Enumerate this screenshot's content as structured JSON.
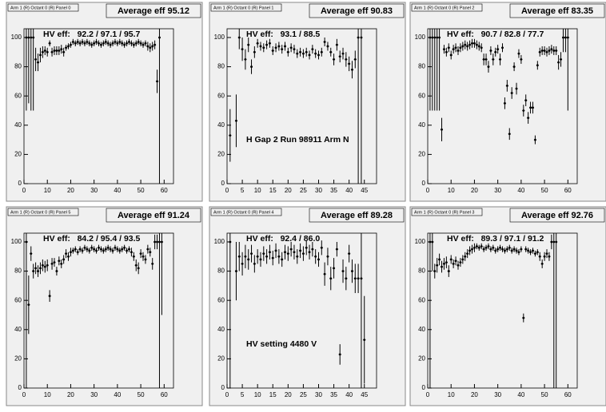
{
  "chart_data": [
    {
      "type": "scatter",
      "title": "Arm 1 (R) Octant 0 (R) Panel 0",
      "subtitle": "Average eff 95.12",
      "annotations": [
        "HV eff:   92.2 / 97.1 / 95.7"
      ],
      "x": [
        1,
        2,
        3,
        4,
        5,
        6,
        7,
        8,
        9,
        10,
        11,
        12,
        13,
        14,
        15,
        16,
        17,
        18,
        19,
        20,
        21,
        22,
        23,
        24,
        25,
        26,
        27,
        28,
        29,
        30,
        31,
        32,
        33,
        34,
        35,
        36,
        37,
        38,
        39,
        40,
        41,
        42,
        43,
        44,
        45,
        46,
        47,
        48,
        49,
        50,
        51,
        52,
        53,
        54,
        55,
        56,
        57,
        58
      ],
      "values": [
        100,
        100,
        100,
        100,
        85,
        83,
        88,
        90,
        91,
        90,
        96,
        90,
        91,
        91,
        91,
        92,
        90,
        93,
        94,
        95,
        97,
        96,
        97,
        96,
        97,
        96,
        97,
        96,
        95,
        96,
        97,
        96,
        95,
        96,
        97,
        96,
        95,
        96,
        97,
        96,
        97,
        96,
        95,
        96,
        97,
        96,
        95,
        96,
        97,
        96,
        95,
        96,
        94,
        93,
        94,
        95,
        70,
        100
      ],
      "errors": [
        50,
        45,
        50,
        50,
        8,
        6,
        5,
        4,
        3,
        3,
        2,
        3,
        3,
        3,
        3,
        3,
        3,
        2,
        2,
        2,
        2,
        2,
        2,
        2,
        2,
        2,
        2,
        2,
        2,
        2,
        2,
        2,
        2,
        2,
        2,
        2,
        2,
        2,
        2,
        2,
        2,
        2,
        2,
        2,
        2,
        2,
        2,
        2,
        2,
        2,
        2,
        2,
        3,
        3,
        3,
        3,
        8,
        100
      ],
      "xlim": [
        0,
        64
      ],
      "ylim": [
        0,
        106
      ],
      "xticks": [
        0,
        10,
        20,
        30,
        40,
        50,
        60
      ],
      "yticks": [
        0,
        20,
        40,
        60,
        80,
        100
      ],
      "color": "#000000"
    },
    {
      "type": "scatter",
      "title": "Arm 1 (R) Octant 0 (R) Panel 1",
      "subtitle": "Average eff 90.83",
      "annotations": [
        "HV eff:   93.1 / 88.5",
        "H Gap 2 Run 98911 Arm N"
      ],
      "x": [
        1,
        3,
        4,
        5,
        6,
        7,
        8,
        9,
        10,
        11,
        12,
        13,
        14,
        15,
        16,
        17,
        18,
        19,
        20,
        21,
        22,
        23,
        24,
        25,
        26,
        27,
        28,
        29,
        30,
        31,
        32,
        33,
        34,
        35,
        36,
        37,
        38,
        39,
        40,
        41,
        42,
        43,
        44
      ],
      "values": [
        33,
        43,
        100,
        92,
        85,
        95,
        80,
        90,
        96,
        94,
        93,
        95,
        96,
        91,
        93,
        94,
        92,
        94,
        90,
        93,
        92,
        89,
        90,
        89,
        90,
        88,
        92,
        89,
        88,
        90,
        97,
        94,
        90,
        85,
        95,
        87,
        89,
        85,
        82,
        78,
        85,
        100,
        100
      ],
      "errors": [
        18,
        18,
        8,
        8,
        7,
        5,
        5,
        4,
        3,
        3,
        3,
        3,
        3,
        3,
        3,
        3,
        3,
        3,
        3,
        3,
        3,
        3,
        3,
        3,
        3,
        3,
        3,
        3,
        3,
        3,
        3,
        3,
        3,
        4,
        4,
        4,
        4,
        5,
        5,
        6,
        6,
        100,
        100
      ],
      "xlim": [
        0,
        49
      ],
      "ylim": [
        0,
        106
      ],
      "xticks": [
        0,
        5,
        10,
        15,
        20,
        25,
        30,
        35,
        40,
        45
      ],
      "yticks": [
        0,
        20,
        40,
        60,
        80,
        100
      ],
      "color": "#000000"
    },
    {
      "type": "scatter",
      "title": "Arm 1 (R) Octant 0 (R) Panel 2",
      "subtitle": "Average eff 83.35",
      "annotations": [
        "HV eff:   90.7 / 82.8 / 77.7"
      ],
      "x": [
        1,
        2,
        3,
        4,
        5,
        6,
        7,
        8,
        9,
        10,
        11,
        12,
        13,
        14,
        15,
        16,
        17,
        18,
        19,
        20,
        21,
        22,
        23,
        24,
        25,
        26,
        27,
        28,
        29,
        30,
        31,
        32,
        33,
        34,
        35,
        36,
        37,
        38,
        39,
        40,
        41,
        42,
        43,
        44,
        45,
        46,
        47,
        48,
        49,
        50,
        51,
        52,
        53,
        54,
        55,
        56,
        57,
        58,
        59,
        60
      ],
      "values": [
        100,
        100,
        100,
        100,
        100,
        37,
        92,
        90,
        93,
        88,
        92,
        93,
        91,
        93,
        94,
        95,
        94,
        95,
        96,
        96,
        95,
        94,
        93,
        85,
        85,
        80,
        91,
        85,
        90,
        92,
        85,
        93,
        55,
        67,
        34,
        62,
        80,
        65,
        89,
        85,
        50,
        57,
        45,
        52,
        52,
        30,
        81,
        90,
        91,
        91,
        90,
        91,
        92,
        91,
        91,
        83,
        85,
        100,
        100,
        100
      ],
      "errors": [
        50,
        50,
        50,
        50,
        50,
        8,
        3,
        3,
        3,
        3,
        3,
        3,
        3,
        3,
        3,
        3,
        3,
        3,
        3,
        3,
        3,
        3,
        3,
        4,
        4,
        4,
        3,
        4,
        3,
        3,
        4,
        3,
        4,
        4,
        4,
        4,
        3,
        4,
        3,
        3,
        4,
        4,
        4,
        4,
        4,
        3,
        3,
        3,
        3,
        3,
        3,
        3,
        3,
        3,
        3,
        5,
        5,
        10,
        10,
        50
      ],
      "xlim": [
        0,
        64
      ],
      "ylim": [
        0,
        106
      ],
      "xticks": [
        0,
        10,
        20,
        30,
        40,
        50,
        60
      ],
      "yticks": [
        0,
        20,
        40,
        60,
        80,
        100
      ],
      "color": "#000000"
    },
    {
      "type": "scatter",
      "title": "Arm 1 (R) Octant 0 (R) Panel 5",
      "subtitle": "Average eff 91.24",
      "annotations": [
        "HV eff:   84.2 / 95.4 / 93.5"
      ],
      "x": [
        1,
        2,
        3,
        4,
        5,
        6,
        7,
        8,
        9,
        10,
        11,
        12,
        13,
        14,
        15,
        16,
        17,
        18,
        19,
        20,
        21,
        22,
        23,
        24,
        25,
        26,
        27,
        28,
        29,
        30,
        31,
        32,
        33,
        34,
        35,
        36,
        37,
        38,
        39,
        40,
        41,
        42,
        43,
        44,
        45,
        46,
        47,
        48,
        49,
        50,
        51,
        52,
        53,
        54,
        55,
        56,
        57,
        58,
        59
      ],
      "values": [
        100,
        57,
        92,
        80,
        82,
        80,
        82,
        84,
        83,
        84,
        63,
        85,
        86,
        80,
        87,
        85,
        88,
        92,
        90,
        93,
        94,
        95,
        93,
        95,
        94,
        96,
        95,
        94,
        96,
        95,
        94,
        96,
        95,
        94,
        95,
        96,
        95,
        94,
        96,
        95,
        94,
        95,
        96,
        94,
        95,
        93,
        90,
        84,
        82,
        92,
        90,
        88,
        95,
        93,
        85,
        100,
        100,
        100,
        100
      ],
      "errors": [
        100,
        20,
        5,
        5,
        4,
        4,
        4,
        4,
        4,
        4,
        4,
        4,
        3,
        3,
        3,
        3,
        3,
        3,
        3,
        3,
        2,
        2,
        2,
        2,
        2,
        2,
        2,
        2,
        2,
        2,
        2,
        2,
        2,
        2,
        2,
        2,
        2,
        2,
        2,
        2,
        2,
        2,
        2,
        2,
        2,
        3,
        3,
        4,
        4,
        3,
        3,
        3,
        3,
        3,
        4,
        5,
        5,
        100,
        50
      ],
      "xlim": [
        0,
        64
      ],
      "ylim": [
        0,
        106
      ],
      "xticks": [
        0,
        10,
        20,
        30,
        40,
        50,
        60
      ],
      "yticks": [
        0,
        20,
        40,
        60,
        80,
        100
      ],
      "color": "#000000"
    },
    {
      "type": "scatter",
      "title": "Arm 1 (R) Octant 0 (R) Panel 4",
      "subtitle": "Average eff 89.28",
      "annotations": [
        "HV eff:   92.4 / 86.0",
        "HV setting 4480 V"
      ],
      "x": [
        1,
        3,
        4,
        5,
        6,
        7,
        8,
        9,
        10,
        11,
        12,
        13,
        14,
        15,
        16,
        17,
        18,
        19,
        20,
        21,
        22,
        23,
        24,
        25,
        26,
        27,
        28,
        29,
        30,
        31,
        32,
        33,
        34,
        35,
        36,
        37,
        38,
        39,
        40,
        41,
        42,
        43,
        44,
        45
      ],
      "values": [
        100,
        80,
        90,
        85,
        90,
        88,
        92,
        85,
        90,
        88,
        92,
        90,
        93,
        89,
        94,
        90,
        88,
        93,
        92,
        95,
        93,
        90,
        94,
        92,
        96,
        93,
        95,
        90,
        88,
        96,
        78,
        90,
        75,
        82,
        95,
        23,
        80,
        75,
        92,
        80,
        75,
        75,
        75,
        33
      ],
      "errors": [
        100,
        20,
        10,
        8,
        8,
        7,
        6,
        6,
        5,
        5,
        5,
        5,
        5,
        5,
        5,
        5,
        5,
        5,
        5,
        5,
        5,
        5,
        5,
        5,
        5,
        5,
        5,
        5,
        5,
        5,
        8,
        6,
        8,
        7,
        5,
        7,
        8,
        8,
        6,
        8,
        10,
        10,
        75,
        30
      ],
      "xlim": [
        0,
        49
      ],
      "ylim": [
        0,
        106
      ],
      "xticks": [
        0,
        5,
        10,
        15,
        20,
        25,
        30,
        35,
        40,
        45
      ],
      "yticks": [
        0,
        20,
        40,
        60,
        80,
        100
      ],
      "color": "#000000"
    },
    {
      "type": "scatter",
      "title": "Arm 1 (R) Octant 0 (R) Panel 3",
      "subtitle": "Average eff 92.76",
      "annotations": [
        "HV eff:   89.3 / 97.1 / 91.2"
      ],
      "x": [
        1,
        2,
        3,
        4,
        5,
        6,
        7,
        8,
        9,
        10,
        11,
        12,
        13,
        14,
        15,
        16,
        17,
        18,
        19,
        20,
        21,
        22,
        23,
        24,
        25,
        26,
        27,
        28,
        29,
        30,
        31,
        32,
        33,
        34,
        35,
        36,
        37,
        38,
        39,
        40,
        41,
        42,
        43,
        44,
        45,
        46,
        47,
        48,
        49,
        50,
        51,
        52,
        53,
        54,
        55
      ],
      "values": [
        100,
        100,
        80,
        84,
        88,
        83,
        85,
        86,
        80,
        88,
        85,
        87,
        84,
        86,
        88,
        90,
        92,
        94,
        95,
        96,
        97,
        96,
        97,
        95,
        96,
        97,
        95,
        96,
        94,
        95,
        96,
        95,
        94,
        95,
        96,
        94,
        95,
        94,
        93,
        95,
        48,
        95,
        94,
        93,
        94,
        92,
        93,
        90,
        85,
        90,
        92,
        90,
        100,
        100,
        100
      ],
      "errors": [
        100,
        20,
        5,
        5,
        4,
        4,
        4,
        4,
        4,
        3,
        3,
        3,
        3,
        3,
        3,
        3,
        3,
        3,
        3,
        3,
        2,
        2,
        2,
        2,
        2,
        2,
        2,
        2,
        2,
        2,
        2,
        2,
        2,
        2,
        2,
        2,
        2,
        2,
        2,
        2,
        3,
        2,
        2,
        2,
        2,
        2,
        2,
        3,
        3,
        3,
        3,
        3,
        5,
        100,
        100
      ],
      "xlim": [
        0,
        64
      ],
      "ylim": [
        0,
        106
      ],
      "xticks": [
        0,
        10,
        20,
        30,
        40,
        50,
        60
      ],
      "yticks": [
        0,
        20,
        40,
        60,
        80,
        100
      ],
      "color": "#000000"
    }
  ]
}
